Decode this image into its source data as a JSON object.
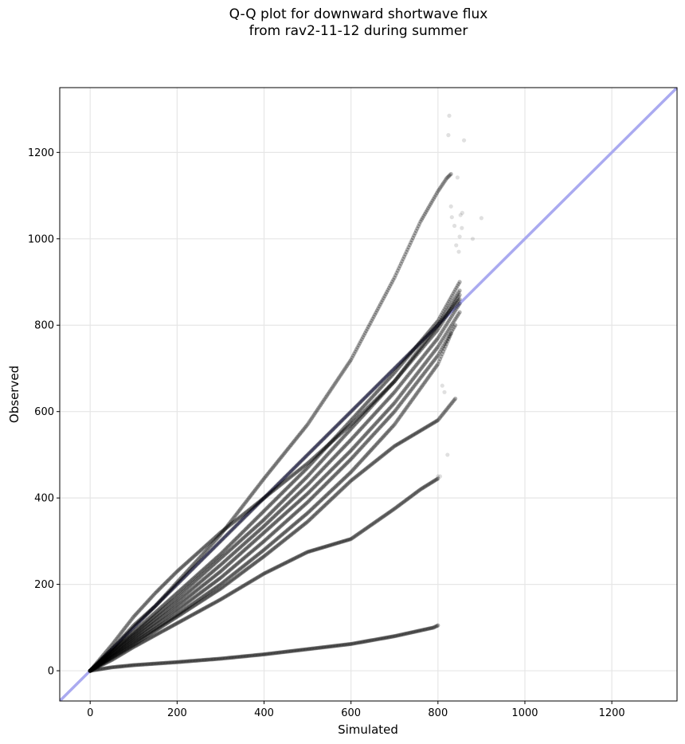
{
  "chart_data": {
    "type": "scatter",
    "title_lines": [
      "Q-Q plot for downward shortwave flux",
      "from rav2-11-12 during summer"
    ],
    "xlabel": "Simulated",
    "ylabel": "Observed",
    "xlim": [
      -70,
      1350
    ],
    "ylim": [
      -70,
      1350
    ],
    "xticks": [
      0,
      200,
      400,
      600,
      800,
      1000,
      1200
    ],
    "yticks": [
      0,
      200,
      400,
      600,
      800,
      1000,
      1200
    ],
    "xtick_labels": [
      "0",
      "200",
      "400",
      "600",
      "800",
      "1000",
      "1200"
    ],
    "ytick_labels": [
      "0",
      "200",
      "400",
      "600",
      "800",
      "1000",
      "1200"
    ],
    "grid": true,
    "reference_line": {
      "name": "1:1 line",
      "slope": 1,
      "intercept": 0,
      "color": "#aaaaf0"
    },
    "point_color": "#000000",
    "series": [
      {
        "x": [
          0,
          50,
          100,
          150,
          200,
          300,
          400,
          500,
          600,
          700,
          760,
          800,
          820,
          830
        ],
        "y": [
          0,
          50,
          105,
          150,
          205,
          315,
          445,
          570,
          720,
          910,
          1040,
          1110,
          1140,
          1150
        ]
      },
      {
        "x": [
          0,
          50,
          100,
          150,
          200,
          300,
          400,
          500,
          600,
          700,
          800,
          850
        ],
        "y": [
          0,
          60,
          125,
          180,
          230,
          320,
          400,
          480,
          570,
          670,
          800,
          880
        ]
      },
      {
        "x": [
          0,
          50,
          100,
          200,
          300,
          400,
          500,
          600,
          700,
          800,
          850
        ],
        "y": [
          0,
          50,
          100,
          200,
          300,
          400,
          500,
          600,
          700,
          800,
          860
        ]
      },
      {
        "x": [
          0,
          50,
          100,
          200,
          300,
          400,
          500,
          600,
          700,
          800,
          850
        ],
        "y": [
          0,
          45,
          90,
          180,
          270,
          370,
          470,
          580,
          690,
          810,
          900
        ]
      },
      {
        "x": [
          0,
          50,
          100,
          200,
          300,
          400,
          500,
          600,
          700,
          800,
          850
        ],
        "y": [
          0,
          45,
          85,
          170,
          260,
          350,
          450,
          560,
          670,
          790,
          870
        ]
      },
      {
        "x": [
          0,
          50,
          100,
          200,
          300,
          400,
          500,
          600,
          700,
          800,
          850
        ],
        "y": [
          0,
          40,
          80,
          160,
          245,
          335,
          430,
          535,
          645,
          770,
          850
        ]
      },
      {
        "x": [
          0,
          50,
          100,
          200,
          300,
          400,
          500,
          600,
          700,
          800,
          850
        ],
        "y": [
          0,
          38,
          75,
          150,
          230,
          320,
          410,
          510,
          620,
          750,
          830
        ]
      },
      {
        "x": [
          0,
          50,
          100,
          200,
          300,
          400,
          500,
          600,
          700,
          800,
          840
        ],
        "y": [
          0,
          35,
          70,
          140,
          215,
          300,
          390,
          490,
          600,
          730,
          800
        ]
      },
      {
        "x": [
          0,
          50,
          100,
          200,
          300,
          400,
          500,
          600,
          700,
          800,
          830
        ],
        "y": [
          0,
          32,
          65,
          130,
          200,
          280,
          365,
          460,
          570,
          710,
          780
        ]
      },
      {
        "x": [
          0,
          50,
          100,
          200,
          300,
          400,
          500,
          600,
          700,
          750,
          800,
          840
        ],
        "y": [
          0,
          30,
          60,
          125,
          190,
          265,
          345,
          440,
          520,
          550,
          580,
          630
        ]
      },
      {
        "x": [
          0,
          50,
          100,
          200,
          300,
          400,
          500,
          600,
          700,
          760,
          800
        ],
        "y": [
          0,
          25,
          55,
          110,
          165,
          225,
          275,
          305,
          375,
          420,
          445
        ]
      },
      {
        "x": [
          0,
          50,
          100,
          200,
          300,
          400,
          500,
          600,
          700,
          790,
          800
        ],
        "y": [
          0,
          8,
          13,
          20,
          28,
          38,
          50,
          62,
          80,
          100,
          105
        ]
      }
    ],
    "outliers": {
      "x": [
        826,
        824,
        860,
        830,
        832,
        845,
        852,
        856,
        880,
        900,
        810,
        815,
        822,
        850,
        805,
        800,
        838,
        842,
        855,
        848
      ],
      "y": [
        1285,
        1240,
        1228,
        1075,
        1050,
        1142,
        1055,
        1060,
        1000,
        1048,
        660,
        645,
        500,
        1005,
        450,
        450,
        1030,
        985,
        1025,
        970
      ]
    }
  }
}
